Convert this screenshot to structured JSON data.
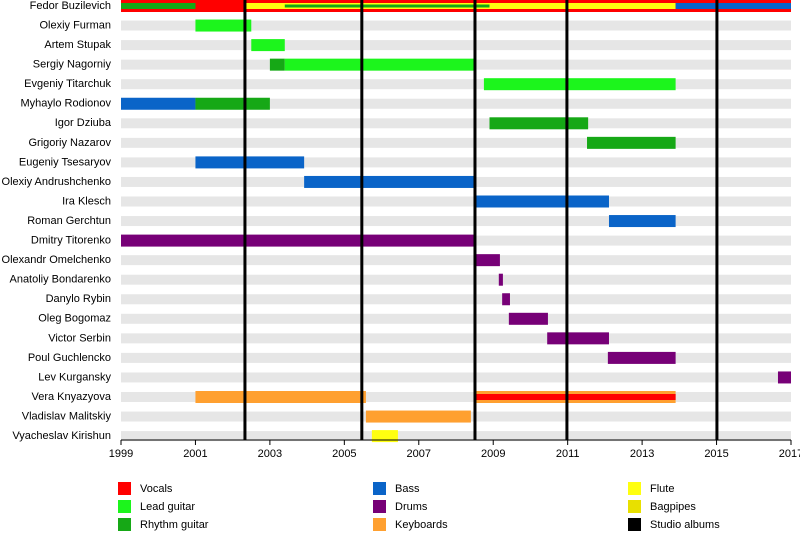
{
  "chart_data": {
    "type": "timeline",
    "xlim": [
      1999,
      2017
    ],
    "xticks": [
      1999,
      2001,
      2003,
      2005,
      2007,
      2009,
      2011,
      2013,
      2015,
      2017
    ],
    "roles": [
      {
        "name": "Vocals",
        "color": "#ff0000"
      },
      {
        "name": "Lead guitar",
        "color": "#1cf51c"
      },
      {
        "name": "Rhythm guitar",
        "color": "#16a816"
      },
      {
        "name": "Bass",
        "color": "#0a64c8"
      },
      {
        "name": "Drums",
        "color": "#770077"
      },
      {
        "name": "Keyboards",
        "color": "#ffa030"
      },
      {
        "name": "Flute",
        "color": "#ffff10"
      },
      {
        "name": "Bagpipes",
        "color": "#e8e000"
      }
    ],
    "albums": {
      "name": "Studio albums",
      "color": "#000000",
      "dates": [
        2002.33,
        2005.47,
        2008.51,
        2010.98,
        2015.01
      ]
    },
    "members": [
      {
        "name": "Fedor Buzilevich",
        "bars": [
          {
            "role": "Vocals",
            "start": 1999,
            "end": 2017
          },
          {
            "role": "Rhythm guitar",
            "start": 1999,
            "end": 2001
          },
          {
            "role": "Flute",
            "start": 2002.33,
            "end": 2013.9
          },
          {
            "role": "Rhythm guitar",
            "start": 2003.4,
            "end": 2008.9
          },
          {
            "role": "Bass",
            "start": 2013.9,
            "end": 2017
          }
        ]
      },
      {
        "name": "Olexiy Furman",
        "bars": [
          {
            "role": "Lead guitar",
            "start": 2001,
            "end": 2002.5
          }
        ]
      },
      {
        "name": "Artem Stupak",
        "bars": [
          {
            "role": "Lead guitar",
            "start": 2002.5,
            "end": 2003.4
          }
        ]
      },
      {
        "name": "Sergiy Nagorniy",
        "bars": [
          {
            "role": "Rhythm guitar",
            "start": 2003,
            "end": 2003.4
          },
          {
            "role": "Lead guitar",
            "start": 2003.4,
            "end": 2008.51
          }
        ]
      },
      {
        "name": "Evgeniy Titarchuk",
        "bars": [
          {
            "role": "Lead guitar",
            "start": 2008.75,
            "end": 2013.9
          }
        ]
      },
      {
        "name": "Myhaylo Rodionov",
        "bars": [
          {
            "role": "Bass",
            "start": 1999,
            "end": 2001
          },
          {
            "role": "Rhythm guitar",
            "start": 2001,
            "end": 2003
          }
        ]
      },
      {
        "name": "Igor Dziuba",
        "bars": [
          {
            "role": "Rhythm guitar",
            "start": 2008.9,
            "end": 2011.55
          }
        ]
      },
      {
        "name": "Grigoriy Nazarov",
        "bars": [
          {
            "role": "Rhythm guitar",
            "start": 2011.52,
            "end": 2013.9
          }
        ]
      },
      {
        "name": "Eugeniy Tsesaryov",
        "bars": [
          {
            "role": "Bass",
            "start": 2001,
            "end": 2003.92
          }
        ]
      },
      {
        "name": "Olexiy Andrushchenko",
        "bars": [
          {
            "role": "Bass",
            "start": 2003.92,
            "end": 2008.51
          }
        ]
      },
      {
        "name": "Ira Klesch",
        "bars": [
          {
            "role": "Bass",
            "start": 2008.51,
            "end": 2012.11
          }
        ]
      },
      {
        "name": "Roman Gerchtun",
        "bars": [
          {
            "role": "Bass",
            "start": 2012.11,
            "end": 2013.9
          }
        ]
      },
      {
        "name": "Dmitry Titorenko",
        "bars": [
          {
            "role": "Drums",
            "start": 1999,
            "end": 2008.51
          }
        ]
      },
      {
        "name": "Olexandr Omelchenko",
        "bars": [
          {
            "role": "Drums",
            "start": 2008.51,
            "end": 2009.18
          }
        ]
      },
      {
        "name": "Anatoliy Bondarenko",
        "bars": [
          {
            "role": "Drums",
            "start": 2009.15,
            "end": 2009.26
          }
        ]
      },
      {
        "name": "Danylo Rybin",
        "bars": [
          {
            "role": "Drums",
            "start": 2009.24,
            "end": 2009.45
          }
        ]
      },
      {
        "name": "Oleg Bogomaz",
        "bars": [
          {
            "role": "Drums",
            "start": 2009.42,
            "end": 2010.47
          }
        ]
      },
      {
        "name": "Victor Serbin",
        "bars": [
          {
            "role": "Drums",
            "start": 2010.45,
            "end": 2012.11
          }
        ]
      },
      {
        "name": "Poul Guchlencko",
        "bars": [
          {
            "role": "Drums",
            "start": 2012.08,
            "end": 2013.9
          }
        ]
      },
      {
        "name": "Lev Kurgansky",
        "bars": [
          {
            "role": "Drums",
            "start": 2016.65,
            "end": 2017
          }
        ]
      },
      {
        "name": "Vera Knyazyova",
        "bars": [
          {
            "role": "Keyboards",
            "start": 2001,
            "end": 2005.58
          },
          {
            "role": "Keyboards",
            "start": 2008.51,
            "end": 2013.9
          },
          {
            "role": "Vocals",
            "start": 2008.51,
            "end": 2013.9
          }
        ]
      },
      {
        "name": "Vladislav Malitskiy",
        "bars": [
          {
            "role": "Keyboards",
            "start": 2005.58,
            "end": 2008.4
          }
        ]
      },
      {
        "name": "Vyacheslav Kirishun",
        "bars": [
          {
            "role": "Flute",
            "start": 2005.74,
            "end": 2006.44
          }
        ]
      }
    ]
  }
}
